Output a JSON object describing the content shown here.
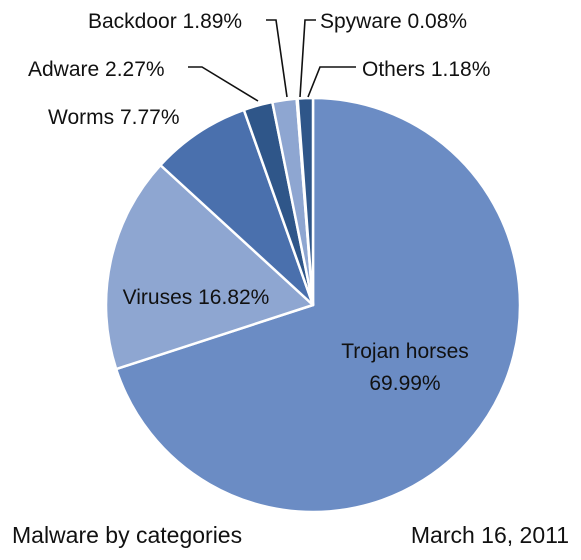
{
  "chart_data": {
    "type": "pie",
    "title": "",
    "start_angle_deg": 0,
    "direction": "clockwise",
    "slices": [
      {
        "label": "Trojan horses",
        "value": 69.99,
        "value_text": "69.99%",
        "color": "#6b8cc4",
        "label_style": "inside-two-line"
      },
      {
        "label": "Viruses",
        "value": 16.82,
        "value_text": "16.82%",
        "color": "#8ea6d1",
        "label_style": "inside"
      },
      {
        "label": "Worms",
        "value": 7.77,
        "value_text": "7.77%",
        "color": "#4a70ad",
        "label_style": "outside"
      },
      {
        "label": "Adware",
        "value": 2.27,
        "value_text": "2.27%",
        "color": "#2f5689",
        "label_style": "outside-leader"
      },
      {
        "label": "Backdoor",
        "value": 1.89,
        "value_text": "1.89%",
        "color": "#8ea6d1",
        "label_style": "outside-leader"
      },
      {
        "label": "Spyware",
        "value": 0.08,
        "value_text": "0.08%",
        "color": "#4a70ad",
        "label_style": "outside-leader"
      },
      {
        "label": "Others",
        "value": 1.18,
        "value_text": "1.18%",
        "color": "#2f5689",
        "label_style": "outside-leader"
      }
    ]
  },
  "captions": {
    "left": "Malware by categories",
    "right": "March 16, 2011"
  }
}
